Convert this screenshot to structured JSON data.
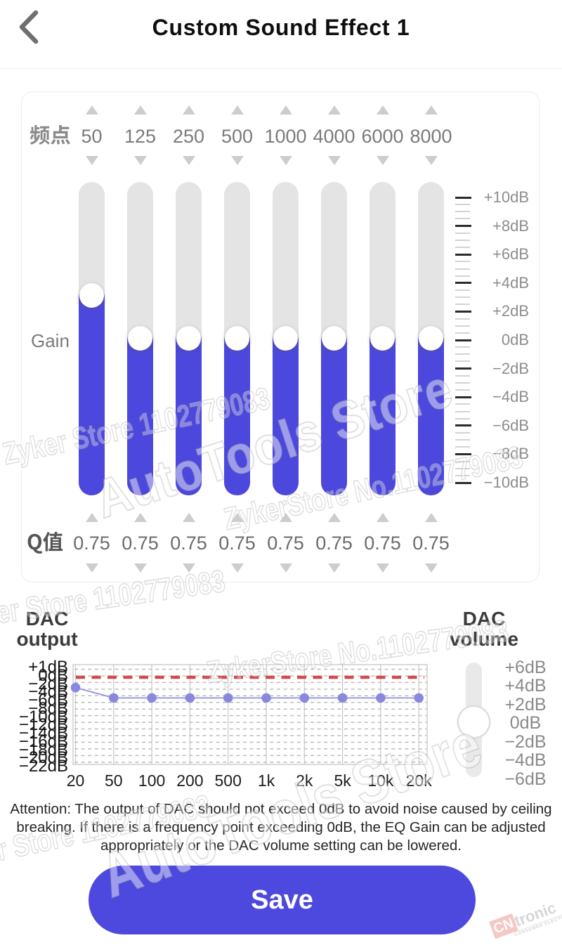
{
  "header": {
    "title": "Custom Sound Effect 1",
    "back_icon": "chevron-left"
  },
  "colors": {
    "accent_blue": "#4c48dd",
    "track_gray": "#e4e4e4",
    "red_dashed": "#d24a4a",
    "dot_purple": "#8a88dd"
  },
  "eq": {
    "freq_label": "频点",
    "gain_label": "Gain",
    "q_label": "Q值",
    "bands": [
      {
        "freq": "50",
        "q": "0.75",
        "gain_db": 3
      },
      {
        "freq": "125",
        "q": "0.75",
        "gain_db": 0
      },
      {
        "freq": "250",
        "q": "0.75",
        "gain_db": 0
      },
      {
        "freq": "500",
        "q": "0.75",
        "gain_db": 0
      },
      {
        "freq": "1000",
        "q": "0.75",
        "gain_db": 0
      },
      {
        "freq": "4000",
        "q": "0.75",
        "gain_db": 0
      },
      {
        "freq": "6000",
        "q": "0.75",
        "gain_db": 0
      },
      {
        "freq": "8000",
        "q": "0.75",
        "gain_db": 0
      }
    ],
    "scale_labels": [
      "+10dB",
      "+8dB",
      "+6dB",
      "+4dB",
      "+2dB",
      "0dB",
      "−2dB",
      "−4dB",
      "−6dB",
      "−8dB",
      "−10dB"
    ]
  },
  "dac_output": {
    "title_lines": [
      "DAC",
      "output"
    ]
  },
  "chart_data": {
    "type": "line",
    "title": "DAC output",
    "x": [
      "20",
      "50",
      "100",
      "200",
      "500",
      "1k",
      "2k",
      "5k",
      "10k",
      "20k"
    ],
    "values": [
      -2.5,
      -5,
      -5,
      -5,
      -5,
      -5,
      -5,
      -5,
      -5,
      -5
    ],
    "y_axis_labels": [
      "+1dB",
      "0dB",
      "−2dB",
      "−4dB",
      "−6dB",
      "−8dB",
      "−10dB",
      "−12dB",
      "−14dB",
      "−16dB",
      "−18dB",
      "−20dB",
      "−22dB"
    ],
    "reference_line_db": 0,
    "legend": "none",
    "grid": "dashed-horizontal, solid-vertical"
  },
  "dac_volume": {
    "title_lines": [
      "DAC",
      "volume"
    ],
    "labels": [
      "+6dB",
      "+4dB",
      "+2dB",
      "0dB",
      "−2dB",
      "−4dB",
      "−6dB"
    ],
    "value_db": 0
  },
  "attention": {
    "text": "Attention: The output of DAC should not exceed 0dB to avoid noise caused by ceiling\nbreaking. If there is a frequency point exceeding 0dB, the EQ Gain can be adjusted\nappropriately or the DAC volume setting can be lowered."
  },
  "save": {
    "label": "Save"
  },
  "watermarks": {
    "store_line": "Zyker Store 1102779083",
    "store_line2": "ZykerStore No.1102779083",
    "brand_line": "AutoTools Store",
    "logo_cn": "CN",
    "logo_rest": "tronic",
    "logo_sub": "CONSUMER ELECTRONICS RETAILER"
  }
}
